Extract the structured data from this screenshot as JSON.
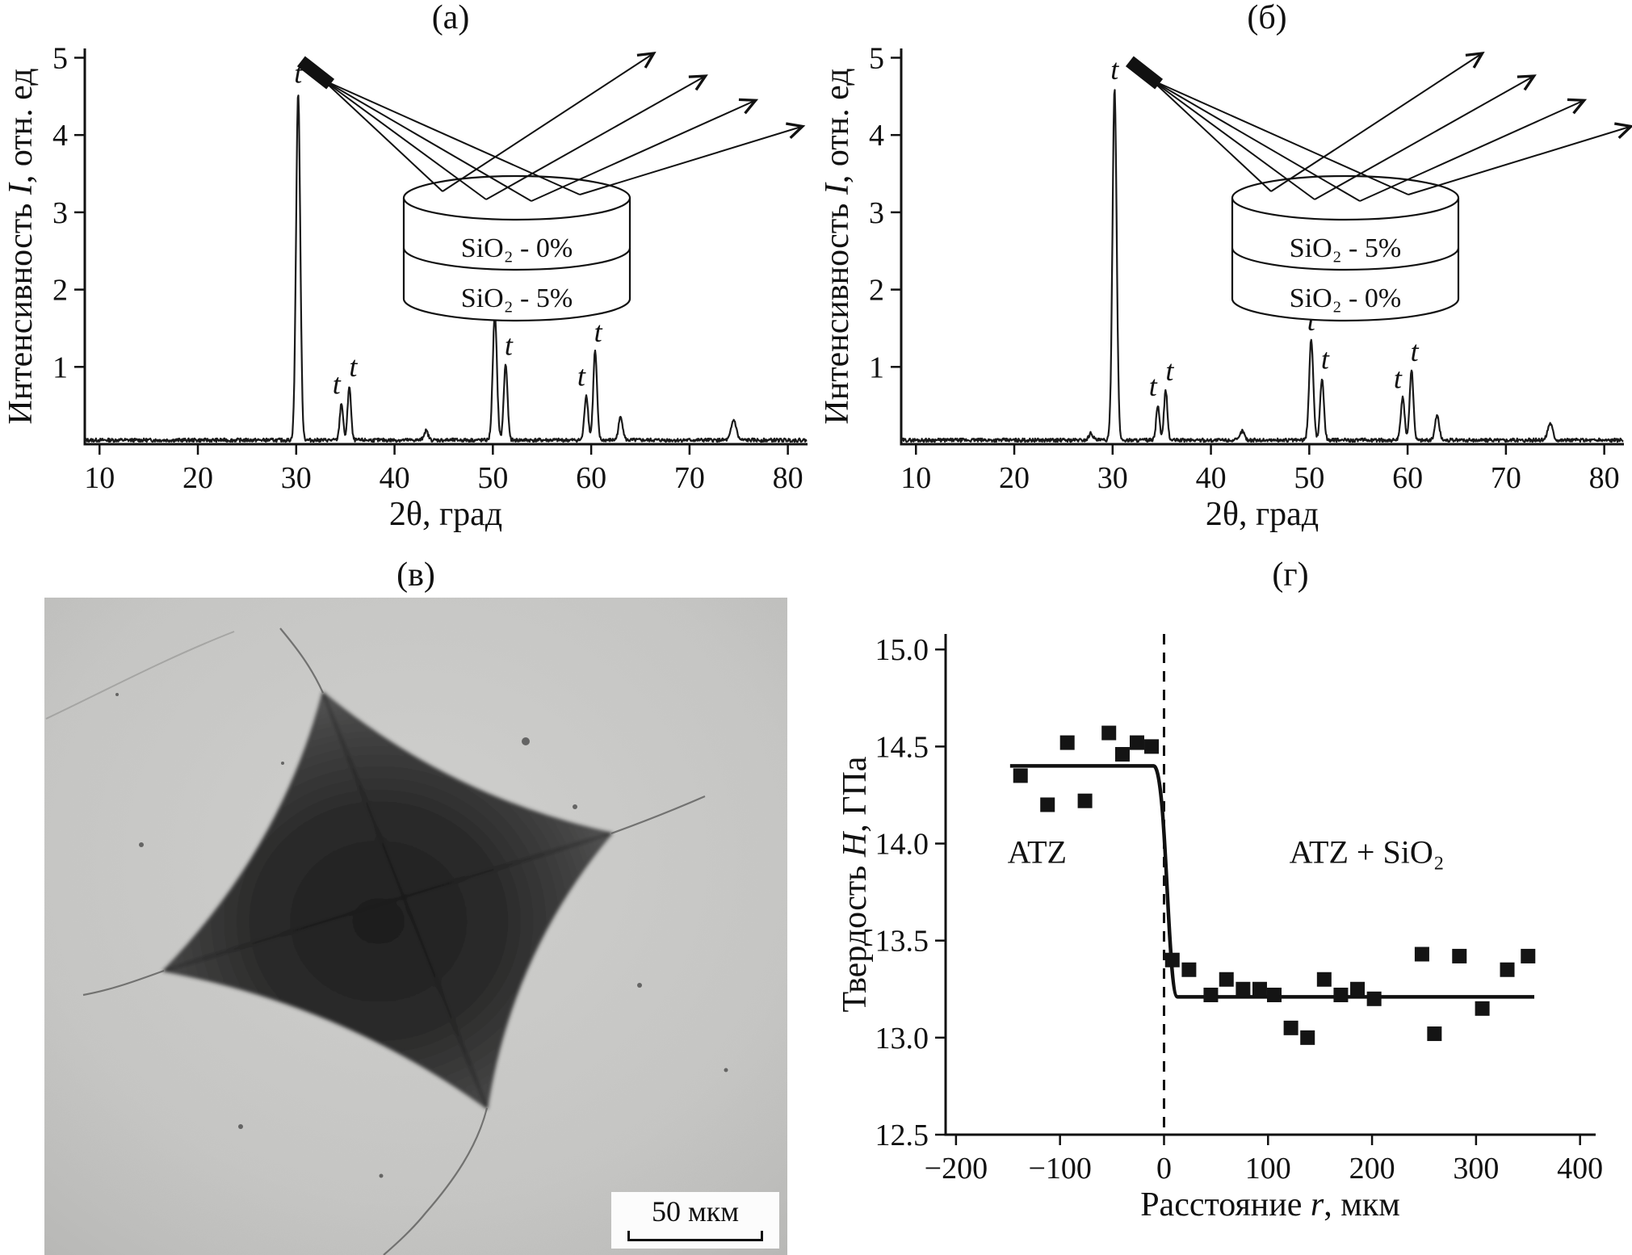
{
  "panels": {
    "a": "(а)",
    "b": "(б)",
    "v": "(в)",
    "g": "(г)"
  },
  "micrograph": {
    "scalebar_label": "50 мкм"
  },
  "chart_data": [
    {
      "id": "xrd-a",
      "type": "line",
      "panel_label": "(а)",
      "xlabel": "2θ, град",
      "ylabel": {
        "pre": "Интенсивность ",
        "var": "I",
        "post": ", отн. ед"
      },
      "xlim": [
        8.5,
        82
      ],
      "ylim": [
        0,
        5.12
      ],
      "xticks": [
        10,
        20,
        30,
        40,
        50,
        60,
        70,
        80
      ],
      "yticks": [
        1,
        2,
        3,
        4,
        5
      ],
      "grid": false,
      "peak_label": "t",
      "peaks": [
        {
          "x": 30.2,
          "h": 4.5,
          "w": 0.5,
          "t": true
        },
        {
          "x": 34.6,
          "h": 0.48,
          "w": 0.4,
          "t": true,
          "ldx": -0.5
        },
        {
          "x": 35.4,
          "h": 0.7,
          "w": 0.4,
          "t": true,
          "ldx": 0.4
        },
        {
          "x": 43.2,
          "h": 0.12,
          "w": 0.5
        },
        {
          "x": 50.2,
          "h": 1.62,
          "w": 0.5,
          "t": true
        },
        {
          "x": 51.3,
          "h": 0.98,
          "w": 0.45,
          "t": true,
          "ldx": 0.3
        },
        {
          "x": 59.5,
          "h": 0.58,
          "w": 0.45,
          "t": true,
          "ldx": -0.5
        },
        {
          "x": 60.4,
          "h": 1.15,
          "w": 0.45,
          "t": true,
          "ldx": 0.3
        },
        {
          "x": 63.0,
          "h": 0.3,
          "w": 0.5
        },
        {
          "x": 74.5,
          "h": 0.26,
          "w": 0.6
        }
      ],
      "inset_layers": [
        "SiO₂ - 0%",
        "SiO₂ - 5%"
      ]
    },
    {
      "id": "xrd-b",
      "type": "line",
      "panel_label": "(б)",
      "xlabel": "2θ, град",
      "ylabel": {
        "pre": "Интенсивность ",
        "var": "I",
        "post": ", отн. ед"
      },
      "xlim": [
        8.5,
        82
      ],
      "ylim": [
        0,
        5.12
      ],
      "xticks": [
        10,
        20,
        30,
        40,
        50,
        60,
        70,
        80
      ],
      "yticks": [
        1,
        2,
        3,
        4,
        5
      ],
      "grid": false,
      "peak_label": "t",
      "peaks": [
        {
          "x": 27.8,
          "h": 0.09,
          "w": 0.5
        },
        {
          "x": 30.2,
          "h": 4.55,
          "w": 0.5,
          "t": true
        },
        {
          "x": 34.6,
          "h": 0.45,
          "w": 0.4,
          "t": true,
          "ldx": -0.5
        },
        {
          "x": 35.4,
          "h": 0.65,
          "w": 0.4,
          "t": true,
          "ldx": 0.4
        },
        {
          "x": 43.2,
          "h": 0.12,
          "w": 0.5
        },
        {
          "x": 50.2,
          "h": 1.3,
          "w": 0.5,
          "t": true
        },
        {
          "x": 51.3,
          "h": 0.8,
          "w": 0.45,
          "t": true,
          "ldx": 0.3
        },
        {
          "x": 59.5,
          "h": 0.55,
          "w": 0.45,
          "t": true,
          "ldx": -0.5
        },
        {
          "x": 60.4,
          "h": 0.9,
          "w": 0.45,
          "t": true,
          "ldx": 0.3
        },
        {
          "x": 63.0,
          "h": 0.32,
          "w": 0.5
        },
        {
          "x": 74.5,
          "h": 0.22,
          "w": 0.6
        }
      ],
      "inset_layers": [
        "SiO₂ - 5%",
        "SiO₂ - 0%"
      ]
    },
    {
      "id": "hardness-profile",
      "type": "scatter",
      "panel_label": "(г)",
      "xlabel": {
        "pre": "Расстояние ",
        "var": "r",
        "post": ", мкм"
      },
      "ylabel": {
        "pre": "Твердость ",
        "var": "H",
        "post": ", ГПа"
      },
      "xlim": [
        -210,
        415
      ],
      "ylim": [
        12.5,
        15.08
      ],
      "xticks": [
        -200,
        -100,
        0,
        100,
        200,
        300,
        400
      ],
      "yticks": [
        12.5,
        13.0,
        13.5,
        14.0,
        14.5,
        15.0
      ],
      "grid": false,
      "dashed_line_x": 0,
      "fit_line": {
        "y_left": 14.4,
        "y_right": 13.21,
        "x_start": -148,
        "x_end": 356
      },
      "points": [
        [
          -138,
          14.35
        ],
        [
          -112,
          14.2
        ],
        [
          -93,
          14.52
        ],
        [
          -76,
          14.22
        ],
        [
          -53,
          14.57
        ],
        [
          -40,
          14.46
        ],
        [
          -26,
          14.52
        ],
        [
          -12,
          14.5
        ],
        [
          8,
          13.4
        ],
        [
          24,
          13.35
        ],
        [
          45,
          13.22
        ],
        [
          60,
          13.3
        ],
        [
          76,
          13.25
        ],
        [
          92,
          13.25
        ],
        [
          106,
          13.22
        ],
        [
          122,
          13.05
        ],
        [
          138,
          13.0
        ],
        [
          154,
          13.3
        ],
        [
          170,
          13.22
        ],
        [
          186,
          13.25
        ],
        [
          202,
          13.2
        ],
        [
          248,
          13.43
        ],
        [
          260,
          13.02
        ],
        [
          284,
          13.42
        ],
        [
          306,
          13.15
        ],
        [
          330,
          13.35
        ],
        [
          350,
          13.42
        ]
      ],
      "annotations": [
        {
          "text": "ATZ",
          "x": -122,
          "y": 13.9
        },
        {
          "text": "ATZ + SiO₂",
          "x": 195,
          "y": 13.9
        }
      ]
    }
  ]
}
